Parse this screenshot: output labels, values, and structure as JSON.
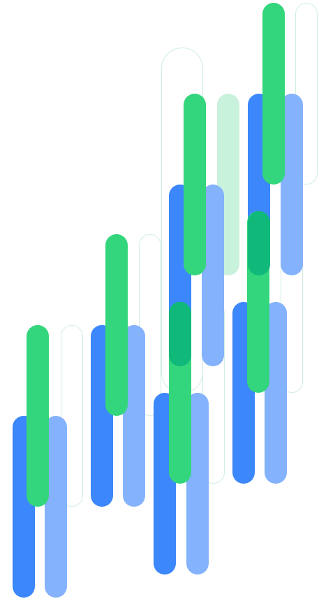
{
  "palette": {
    "blue": "#3b87fb",
    "light_blue": "#84b2fc",
    "green": "#33d67c",
    "light_green": "#c9f2dc",
    "teal_overlap": "#10b979",
    "outline": "#cfeee0"
  },
  "pill_kinds": [
    "blue",
    "light_blue",
    "green",
    "light_green",
    "teal_overlap",
    "outline"
  ]
}
